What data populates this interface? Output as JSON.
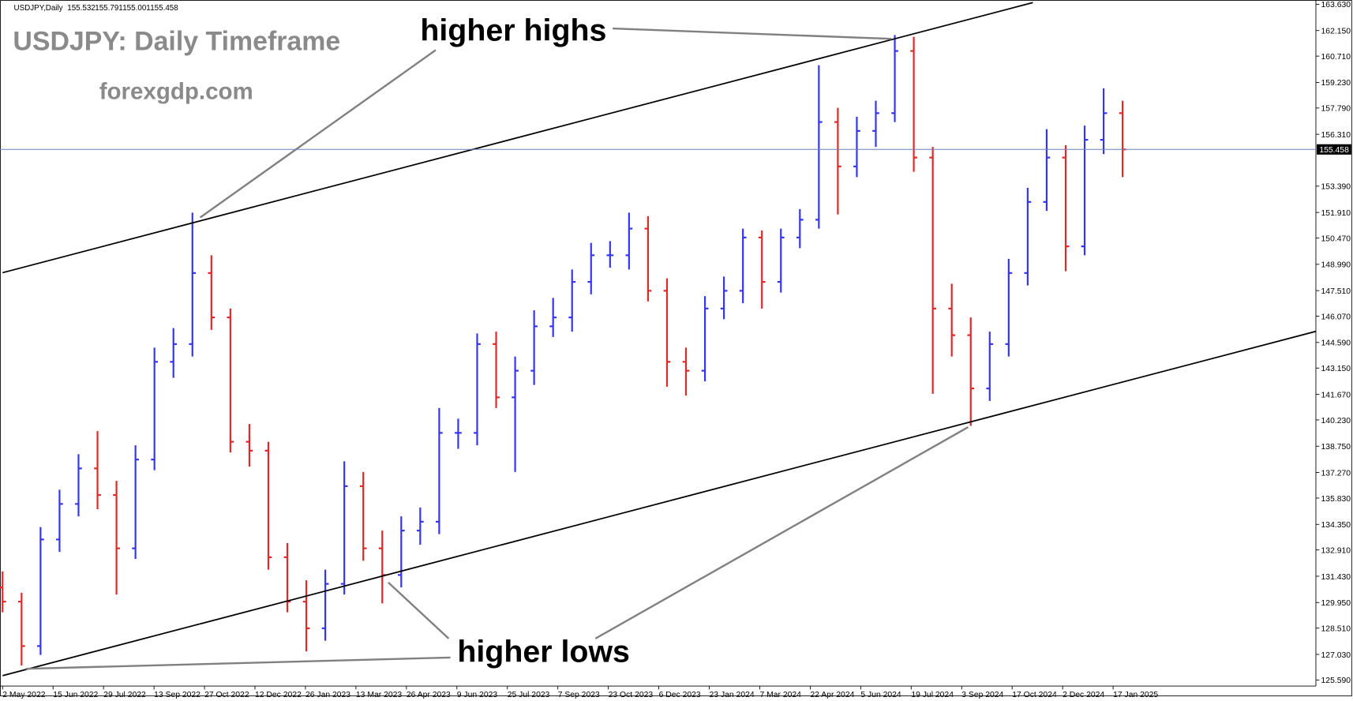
{
  "header": {
    "symbol": "USDJPY,Daily",
    "open": 155.532,
    "high": 155.791,
    "low": 155.001,
    "close": 155.458
  },
  "chart_data": {
    "type": "ohlc",
    "title": "USDJPY: Daily Timeframe",
    "subtitle": "forexgdp.com",
    "annotations": [
      "higher highs",
      "higher lows"
    ],
    "current_price": 155.458,
    "current_price_color": "#6a80b8",
    "up_color": "#3535f0",
    "down_color": "#e02828",
    "ylim": [
      125.25,
      163.87
    ],
    "yticks": [
      {
        "value": 125.59,
        "label": "125.590"
      },
      {
        "value": 127.03,
        "label": "127.030"
      },
      {
        "value": 128.51,
        "label": "128.510"
      },
      {
        "value": 129.95,
        "label": "129.950"
      },
      {
        "value": 131.43,
        "label": "131.430"
      },
      {
        "value": 132.91,
        "label": "132.910"
      },
      {
        "value": 134.35,
        "label": "134.350"
      },
      {
        "value": 135.83,
        "label": "135.830"
      },
      {
        "value": 137.27,
        "label": "137.270"
      },
      {
        "value": 138.75,
        "label": "138.750"
      },
      {
        "value": 140.23,
        "label": "140.230"
      },
      {
        "value": 141.67,
        "label": "141.670"
      },
      {
        "value": 143.15,
        "label": "143.150"
      },
      {
        "value": 144.59,
        "label": "144.590"
      },
      {
        "value": 146.07,
        "label": "146.070"
      },
      {
        "value": 147.51,
        "label": "147.510"
      },
      {
        "value": 148.99,
        "label": "148.990"
      },
      {
        "value": 150.47,
        "label": "150.470"
      },
      {
        "value": 151.91,
        "label": "151.910"
      },
      {
        "value": 153.39,
        "label": "153.390"
      },
      {
        "value": 156.31,
        "label": "156.310"
      },
      {
        "value": 157.79,
        "label": "157.790"
      },
      {
        "value": 159.23,
        "label": "159.230"
      },
      {
        "value": 160.71,
        "label": "160.710"
      },
      {
        "value": 162.15,
        "label": "162.150"
      },
      {
        "value": 163.63,
        "label": "163.630"
      }
    ],
    "x_labels": [
      "2 May 2022",
      "15 Jun 2022",
      "29 Jul 2022",
      "13 Sep 2022",
      "27 Oct 2022",
      "12 Dec 2022",
      "26 Jan 2023",
      "13 Mar 2023",
      "26 Apr 2023",
      "9 Jun 2023",
      "25 Jul 2023",
      "7 Sep 2023",
      "23 Oct 2023",
      "6 Dec 2023",
      "23 Jan 2024",
      "7 Mar 2024",
      "22 Apr 2024",
      "5 Jun 2024",
      "19 Jul 2024",
      "3 Sep 2024",
      "17 Oct 2024",
      "2 Dec 2024",
      "17 Jan 2025"
    ],
    "open": [
      130.8,
      130.0,
      127.5,
      133.5,
      135.5,
      137.5,
      136.0,
      133.0,
      138.0,
      143.5,
      144.5,
      148.5,
      146.0,
      139.0,
      138.5,
      132.5,
      130.0,
      128.5,
      131.0,
      136.5,
      133.0,
      131.5,
      134.0,
      134.5,
      139.5,
      139.5,
      144.5,
      141.5,
      143.0,
      145.5,
      146.0,
      148.0,
      149.5,
      149.5,
      151.0,
      147.5,
      143.5,
      143.0,
      146.5,
      147.5,
      150.5,
      148.0,
      150.5,
      151.5,
      157.0,
      154.5,
      156.5,
      157.5,
      161.0,
      155.0,
      146.5,
      145.0,
      142.0,
      144.5,
      148.5,
      152.5,
      155.0,
      150.0,
      156.0,
      157.5
    ],
    "high": [
      131.7,
      130.5,
      134.2,
      136.3,
      138.3,
      139.6,
      136.8,
      138.8,
      144.3,
      145.4,
      151.9,
      149.5,
      146.5,
      140.0,
      139.0,
      133.3,
      131.2,
      131.8,
      137.9,
      137.3,
      134.0,
      134.8,
      135.3,
      140.9,
      140.3,
      145.1,
      145.2,
      143.8,
      146.4,
      147.1,
      148.7,
      150.2,
      150.3,
      151.9,
      151.7,
      148.2,
      144.3,
      147.2,
      148.3,
      151.0,
      150.9,
      151.0,
      152.1,
      160.2,
      157.8,
      157.3,
      158.2,
      161.9,
      161.8,
      155.6,
      147.9,
      146.0,
      145.2,
      149.3,
      153.3,
      156.6,
      155.7,
      156.8,
      158.9,
      158.2
    ],
    "low": [
      129.4,
      126.4,
      127.0,
      132.8,
      134.8,
      135.2,
      130.4,
      132.4,
      137.4,
      142.6,
      143.8,
      145.3,
      138.4,
      137.6,
      131.8,
      129.4,
      127.2,
      127.8,
      130.4,
      132.3,
      129.9,
      130.8,
      133.2,
      133.8,
      138.6,
      138.8,
      140.9,
      137.3,
      142.2,
      144.9,
      145.2,
      147.3,
      148.8,
      148.7,
      146.9,
      142.1,
      141.6,
      142.4,
      145.9,
      146.8,
      146.5,
      147.4,
      149.9,
      151.0,
      151.8,
      153.9,
      155.6,
      157.0,
      154.2,
      141.7,
      143.8,
      139.9,
      141.3,
      143.8,
      147.8,
      152.0,
      148.6,
      149.5,
      155.2,
      153.9
    ],
    "close": [
      130.0,
      127.5,
      133.5,
      135.5,
      137.5,
      136.0,
      133.0,
      138.0,
      143.5,
      144.5,
      148.5,
      146.0,
      139.0,
      138.5,
      132.5,
      130.0,
      128.5,
      131.0,
      136.5,
      133.0,
      131.5,
      134.0,
      134.5,
      139.5,
      139.5,
      144.5,
      141.5,
      143.0,
      145.5,
      146.0,
      148.0,
      149.5,
      149.5,
      151.0,
      147.5,
      143.5,
      143.0,
      146.5,
      147.5,
      150.5,
      148.0,
      150.5,
      151.5,
      157.0,
      154.5,
      156.5,
      157.5,
      161.0,
      155.0,
      146.5,
      145.0,
      142.0,
      144.5,
      148.5,
      152.5,
      155.0,
      150.0,
      156.0,
      157.5,
      155.458
    ]
  }
}
